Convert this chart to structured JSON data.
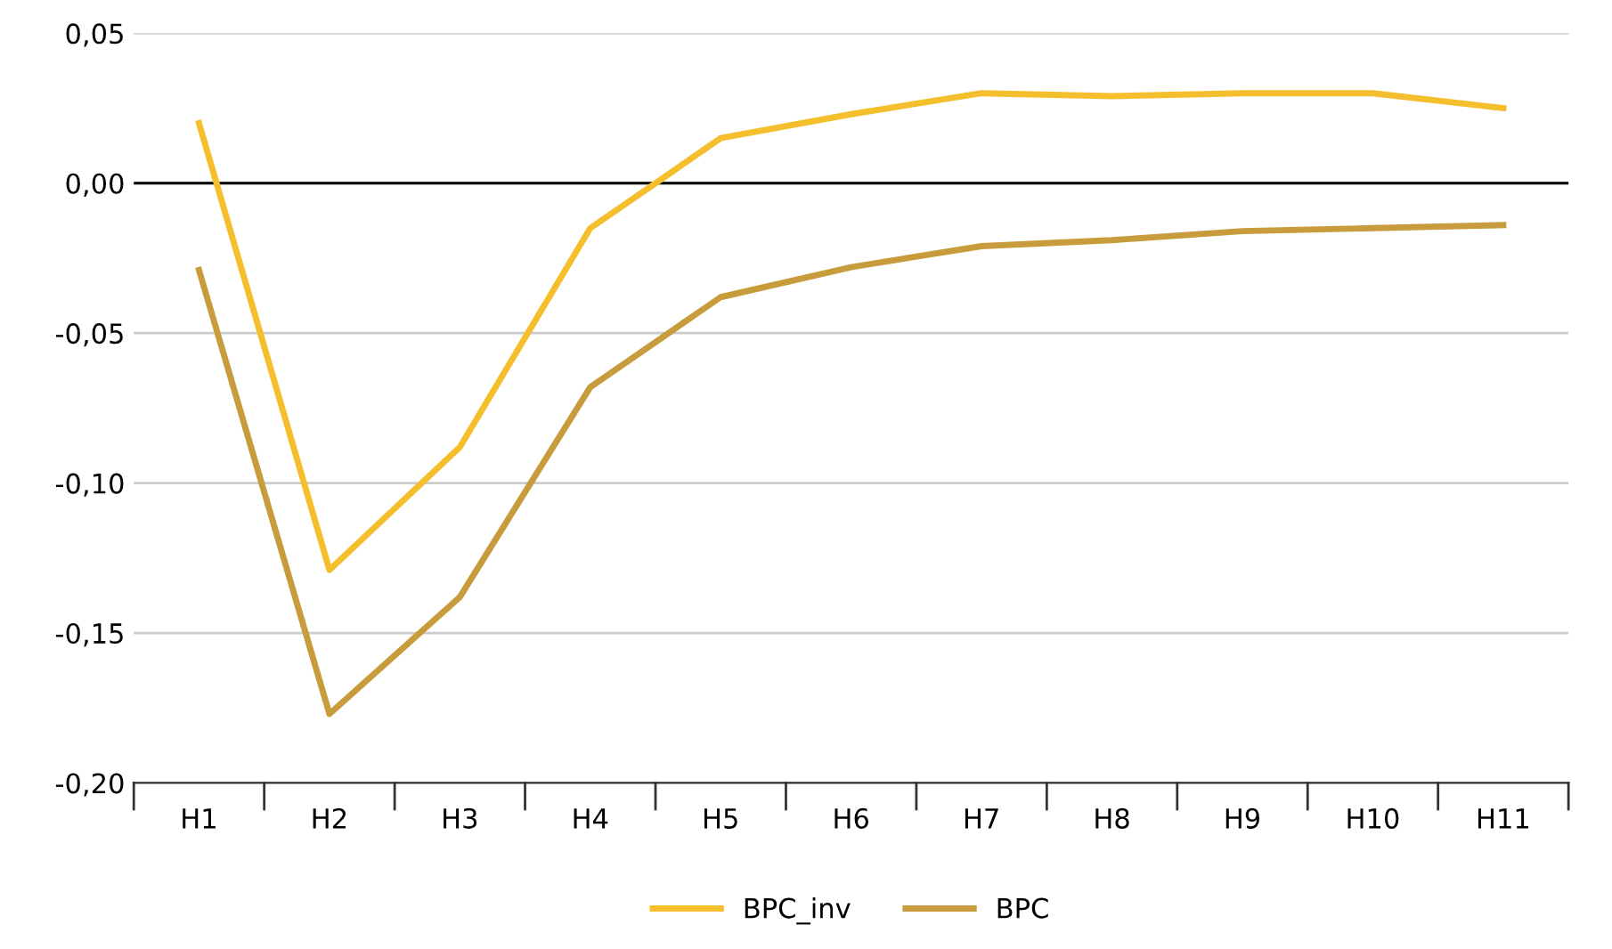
{
  "chart_data": {
    "type": "line",
    "categories": [
      "H1",
      "H2",
      "H3",
      "H4",
      "H5",
      "H6",
      "H7",
      "H8",
      "H9",
      "H10",
      "H11"
    ],
    "series": [
      {
        "name": "BPC_inv",
        "color": "#f4be2c",
        "values": [
          0.02,
          -0.129,
          -0.088,
          -0.015,
          0.015,
          0.023,
          0.03,
          0.029,
          0.03,
          0.03,
          0.025
        ]
      },
      {
        "name": "BPC",
        "color": "#c89c3c",
        "values": [
          -0.029,
          -0.177,
          -0.138,
          -0.068,
          -0.038,
          -0.028,
          -0.021,
          -0.019,
          -0.016,
          -0.015,
          -0.014
        ]
      }
    ],
    "ylim": [
      -0.2,
      0.05
    ],
    "yticks": [
      {
        "value": -0.2,
        "label": "-0,20"
      },
      {
        "value": -0.15,
        "label": "-0,15"
      },
      {
        "value": -0.1,
        "label": "-0,10"
      },
      {
        "value": -0.05,
        "label": "-0,05"
      },
      {
        "value": 0,
        "label": "0,00"
      },
      {
        "value": 0.05,
        "label": "0,05"
      }
    ],
    "ref_lines": [
      {
        "axis": "y",
        "value": 0,
        "color": "#000000"
      }
    ],
    "grid": "y",
    "legend": "bottom",
    "marker": "none",
    "line_style": "solid"
  }
}
